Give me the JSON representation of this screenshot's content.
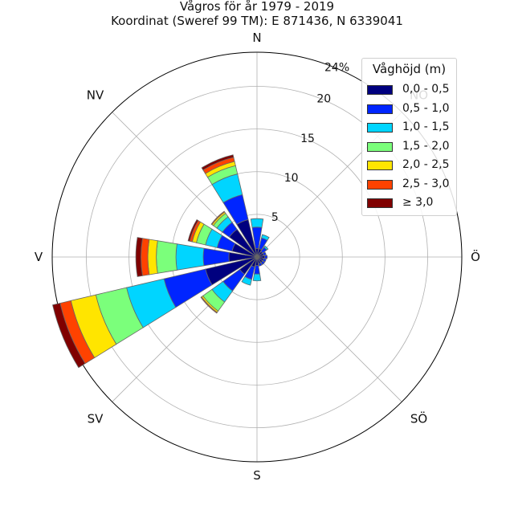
{
  "chart_data": {
    "type": "windrose",
    "title": "Vågros för år 1979 - 2019",
    "subtitle": "Koordinat (Sweref 99 TM): E 871436, N 6339041",
    "directions": [
      "N",
      "NO",
      "Ö",
      "SÖ",
      "S",
      "SV",
      "V",
      "NV"
    ],
    "radial_ticks": [
      "5",
      "10",
      "15",
      "20",
      "24%"
    ],
    "radial_max": 24,
    "legend_title": "Våghöjd (m)",
    "legend_placement": "top-right",
    "bins": [
      {
        "label": "0,0 - 0,5",
        "color": "#00007f"
      },
      {
        "label": "0,5 - 1,0",
        "color": "#0025ff"
      },
      {
        "label": "1,0 - 1,5",
        "color": "#00d5ff"
      },
      {
        "label": "1,5 - 2,0",
        "color": "#7bff7b"
      },
      {
        "label": "2,0 - 2,5",
        "color": "#ffe500"
      },
      {
        "label": "2,5 - 3,0",
        "color": "#ff4200"
      },
      {
        "label": "≥ 3,0",
        "color": "#800000"
      }
    ],
    "sectors": [
      {
        "direction_deg": 0,
        "values": [
          1.0,
          2.5,
          1.0,
          0.0,
          0.0,
          0.0,
          0.0
        ]
      },
      {
        "direction_deg": 22.5,
        "values": [
          1.0,
          1.3,
          0.4,
          0.0,
          0.0,
          0.0,
          0.0
        ]
      },
      {
        "direction_deg": 45,
        "values": [
          0.8,
          0.6,
          0.2,
          0.0,
          0.0,
          0.0,
          0.0
        ]
      },
      {
        "direction_deg": 67.5,
        "values": [
          0.8,
          0.3,
          0.0,
          0.0,
          0.0,
          0.0,
          0.0
        ]
      },
      {
        "direction_deg": 90,
        "values": [
          0.9,
          0.3,
          0.0,
          0.0,
          0.0,
          0.0,
          0.0
        ]
      },
      {
        "direction_deg": 112.5,
        "values": [
          0.8,
          0.3,
          0.0,
          0.0,
          0.0,
          0.0,
          0.0
        ]
      },
      {
        "direction_deg": 135,
        "values": [
          0.8,
          0.3,
          0.0,
          0.0,
          0.0,
          0.0,
          0.0
        ]
      },
      {
        "direction_deg": 157.5,
        "values": [
          0.8,
          0.3,
          0.0,
          0.0,
          0.0,
          0.0,
          0.0
        ]
      },
      {
        "direction_deg": 180,
        "values": [
          1.0,
          1.0,
          0.8,
          0.0,
          0.0,
          0.0,
          0.0
        ]
      },
      {
        "direction_deg": 202.5,
        "values": [
          1.2,
          1.5,
          0.7,
          0.0,
          0.0,
          0.0,
          0.0
        ]
      },
      {
        "direction_deg": 225,
        "values": [
          2.5,
          2.4,
          1.6,
          1.3,
          0.2,
          0.1,
          0.0
        ]
      },
      {
        "direction_deg": 247.5,
        "values": [
          6.2,
          5.0,
          4.5,
          3.7,
          3.0,
          1.3,
          0.9
        ]
      },
      {
        "direction_deg": 270,
        "values": [
          3.3,
          3.0,
          3.2,
          2.3,
          1.0,
          0.8,
          0.6
        ]
      },
      {
        "direction_deg": 292.5,
        "values": [
          3.0,
          1.8,
          1.4,
          1.1,
          0.5,
          0.3,
          0.2
        ]
      },
      {
        "direction_deg": 315,
        "values": [
          4.0,
          1.0,
          0.8,
          0.5,
          0.2,
          0.1,
          0.0
        ]
      },
      {
        "direction_deg": 337.5,
        "values": [
          4.5,
          3.0,
          2.5,
          1.0,
          0.5,
          0.5,
          0.3
        ]
      }
    ]
  }
}
